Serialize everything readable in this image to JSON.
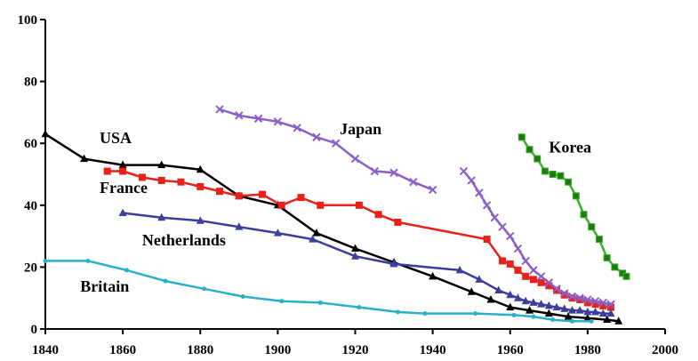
{
  "chart_data": {
    "type": "line",
    "title": "",
    "xlabel": "",
    "ylabel": "",
    "xlim": [
      1840,
      2000
    ],
    "ylim": [
      0,
      100
    ],
    "x_ticks": [
      "1840",
      "1860",
      "1880",
      "1900",
      "1920",
      "1940",
      "1960",
      "1980",
      "2000"
    ],
    "y_ticks": [
      "0",
      "20",
      "40",
      "60",
      "80",
      "100"
    ],
    "grid": false,
    "legend": "none (series labeled directly on plot)",
    "series": [
      {
        "name": "USA",
        "color": "#000000",
        "marker": "triangle",
        "label_pos": [
          1854,
          60
        ],
        "points": [
          [
            1840,
            63
          ],
          [
            1850,
            55
          ],
          [
            1860,
            53
          ],
          [
            1870,
            53
          ],
          [
            1880,
            51.5
          ],
          [
            1890,
            43
          ],
          [
            1900,
            40
          ],
          [
            1910,
            31
          ],
          [
            1920,
            26
          ],
          [
            1930,
            21.5
          ],
          [
            1940,
            17
          ],
          [
            1950,
            12
          ],
          [
            1955,
            9.5
          ],
          [
            1960,
            7
          ],
          [
            1965,
            6
          ],
          [
            1970,
            5
          ],
          [
            1975,
            4
          ],
          [
            1980,
            3.5
          ],
          [
            1985,
            3
          ],
          [
            1988,
            2.5
          ]
        ]
      },
      {
        "name": "France",
        "color": "#e8211a",
        "marker": "square",
        "label_pos": [
          1854,
          44
        ],
        "points": [
          [
            1856,
            51
          ],
          [
            1860,
            51
          ],
          [
            1865,
            49
          ],
          [
            1870,
            48
          ],
          [
            1875,
            47.5
          ],
          [
            1880,
            46
          ],
          [
            1885,
            44.5
          ],
          [
            1890,
            43
          ],
          [
            1896,
            43.5
          ],
          [
            1901,
            40
          ],
          [
            1906,
            42.5
          ],
          [
            1911,
            40
          ],
          [
            1921,
            40
          ],
          [
            1926,
            37
          ],
          [
            1931,
            34.5
          ],
          [
            1954,
            29
          ],
          [
            1958,
            22
          ],
          [
            1960,
            21
          ],
          [
            1962,
            19
          ],
          [
            1964,
            17
          ],
          [
            1966,
            16
          ],
          [
            1968,
            15
          ],
          [
            1970,
            14
          ],
          [
            1972,
            12.5
          ],
          [
            1974,
            11
          ],
          [
            1976,
            10
          ],
          [
            1978,
            9.5
          ],
          [
            1980,
            8.5
          ],
          [
            1982,
            8
          ],
          [
            1984,
            7.5
          ],
          [
            1986,
            7
          ]
        ]
      },
      {
        "name": "Netherlands",
        "color": "#3b3e9a",
        "marker": "triangle",
        "label_pos": [
          1865,
          27
        ],
        "points": [
          [
            1860,
            37.5
          ],
          [
            1870,
            36
          ],
          [
            1880,
            35
          ],
          [
            1890,
            33
          ],
          [
            1900,
            31
          ],
          [
            1909,
            29
          ],
          [
            1920,
            23.5
          ],
          [
            1930,
            21
          ],
          [
            1947,
            19
          ],
          [
            1952,
            16
          ],
          [
            1957,
            12.5
          ],
          [
            1960,
            11
          ],
          [
            1962,
            10
          ],
          [
            1964,
            9
          ],
          [
            1966,
            8.5
          ],
          [
            1968,
            8
          ],
          [
            1970,
            7.5
          ],
          [
            1972,
            7
          ],
          [
            1974,
            6.5
          ],
          [
            1976,
            6
          ],
          [
            1978,
            6
          ],
          [
            1980,
            5.5
          ],
          [
            1982,
            5.5
          ],
          [
            1984,
            5
          ],
          [
            1986,
            5
          ]
        ]
      },
      {
        "name": "Britain",
        "color": "#2ab1c8",
        "marker": "dot",
        "label_pos": [
          1849,
          12
        ],
        "points": [
          [
            1840,
            22
          ],
          [
            1851,
            22
          ],
          [
            1861,
            19
          ],
          [
            1871,
            15.5
          ],
          [
            1881,
            13
          ],
          [
            1891,
            10.5
          ],
          [
            1901,
            9
          ],
          [
            1911,
            8.5
          ],
          [
            1921,
            7
          ],
          [
            1931,
            5.5
          ],
          [
            1938,
            5
          ],
          [
            1951,
            5
          ],
          [
            1961,
            4.5
          ],
          [
            1966,
            4
          ],
          [
            1971,
            3
          ],
          [
            1976,
            2.5
          ],
          [
            1981,
            2.5
          ]
        ]
      },
      {
        "name": "Japan",
        "color": "#8a5fc6",
        "marker": "cross",
        "label_pos": [
          1916,
          63
        ],
        "points": [
          [
            1885,
            71
          ],
          [
            1890,
            69
          ],
          [
            1895,
            68
          ],
          [
            1900,
            67
          ],
          [
            1905,
            65
          ],
          [
            1910,
            62
          ],
          [
            1915,
            60
          ],
          [
            1920,
            55
          ],
          [
            1925,
            51
          ],
          [
            1930,
            50.5
          ],
          [
            1935,
            47.5
          ],
          [
            1940,
            45
          ],
          null,
          [
            1948,
            51
          ],
          [
            1950,
            48
          ],
          [
            1952,
            44
          ],
          [
            1954,
            40
          ],
          [
            1956,
            36
          ],
          [
            1958,
            33
          ],
          [
            1960,
            30
          ],
          [
            1962,
            26
          ],
          [
            1964,
            22
          ],
          [
            1966,
            19
          ],
          [
            1968,
            17
          ],
          [
            1970,
            15
          ],
          [
            1972,
            13
          ],
          [
            1974,
            11.5
          ],
          [
            1976,
            10.5
          ],
          [
            1978,
            10
          ],
          [
            1980,
            9.5
          ],
          [
            1982,
            9
          ],
          [
            1984,
            8.5
          ],
          [
            1986,
            8
          ]
        ]
      },
      {
        "name": "Korea",
        "color": "#38b323",
        "marker": "square",
        "label_pos": [
          1970,
          57
        ],
        "points": [
          [
            1963,
            62
          ],
          [
            1965,
            58
          ],
          [
            1967,
            55
          ],
          [
            1969,
            51
          ],
          [
            1971,
            50
          ],
          [
            1973,
            49.5
          ],
          [
            1975,
            47.5
          ],
          [
            1977,
            43
          ],
          [
            1979,
            37
          ],
          [
            1981,
            33
          ],
          [
            1983,
            29
          ],
          [
            1985,
            23
          ],
          [
            1987,
            20
          ],
          [
            1989,
            18
          ],
          [
            1990,
            17
          ]
        ]
      }
    ]
  }
}
